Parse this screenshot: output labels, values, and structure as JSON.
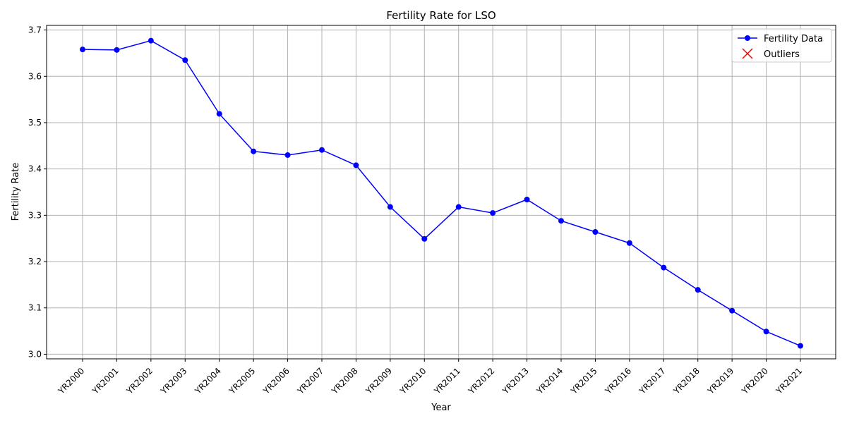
{
  "chart_data": {
    "type": "line",
    "title": "Fertility Rate for LSO",
    "xlabel": "Year",
    "ylabel": "Fertility Rate",
    "categories": [
      "YR2000",
      "YR2001",
      "YR2002",
      "YR2003",
      "YR2004",
      "YR2005",
      "YR2006",
      "YR2007",
      "YR2008",
      "YR2009",
      "YR2010",
      "YR2011",
      "YR2012",
      "YR2013",
      "YR2014",
      "YR2015",
      "YR2016",
      "YR2017",
      "YR2018",
      "YR2019",
      "YR2020",
      "YR2021"
    ],
    "series": [
      {
        "name": "Fertility Data",
        "color": "#0000ff",
        "marker": "circle",
        "values": [
          3.658,
          3.657,
          3.677,
          3.635,
          3.519,
          3.438,
          3.43,
          3.441,
          3.408,
          3.318,
          3.249,
          3.318,
          3.305,
          3.334,
          3.288,
          3.264,
          3.24,
          3.187,
          3.139,
          3.094,
          3.049,
          3.018
        ]
      }
    ],
    "outliers": {
      "name": "Outliers",
      "color": "#ff0000",
      "marker": "x",
      "values": []
    },
    "ylim": [
      2.99,
      3.71
    ],
    "yticks": [
      "3.0",
      "3.1",
      "3.2",
      "3.3",
      "3.4",
      "3.5",
      "3.6",
      "3.7"
    ],
    "grid": true,
    "legend_position": "top-right"
  }
}
